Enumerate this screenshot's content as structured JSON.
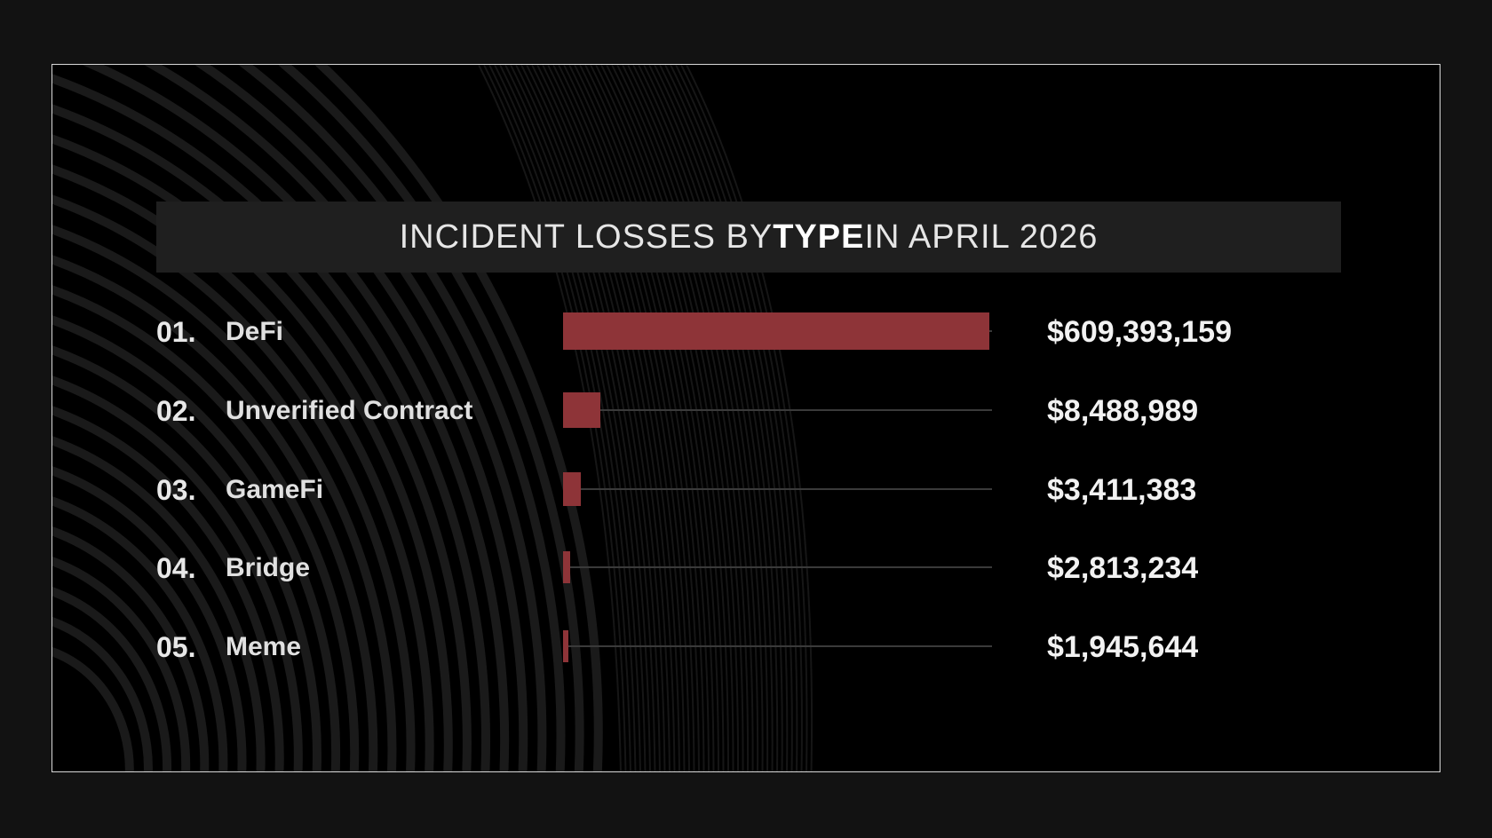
{
  "chart_data": {
    "type": "bar",
    "orientation": "horizontal",
    "title_parts": [
      {
        "text": "INCIDENT LOSSES BY ",
        "bold": false
      },
      {
        "text": "TYPE",
        "bold": true
      },
      {
        "text": " IN APRIL 2026",
        "bold": false
      }
    ],
    "ranks": [
      "01.",
      "02.",
      "03.",
      "04.",
      "05."
    ],
    "categories": [
      "DeFi",
      "Unverified Contract",
      "GameFi",
      "Bridge",
      "Meme"
    ],
    "values": [
      609393159,
      8488989,
      3411383,
      2813234,
      1945644
    ],
    "value_labels": [
      "$609,393,159",
      "$8,488,989",
      "$3,411,383",
      "$2,813,234",
      "$1,945,644"
    ],
    "xlim": [
      0,
      609393159
    ],
    "grid": false,
    "legend": "none",
    "colors": {
      "bar": "#8e3438",
      "track": "#3a3a3a",
      "background": "#000000",
      "title_bar": "#1f1f1f"
    }
  }
}
